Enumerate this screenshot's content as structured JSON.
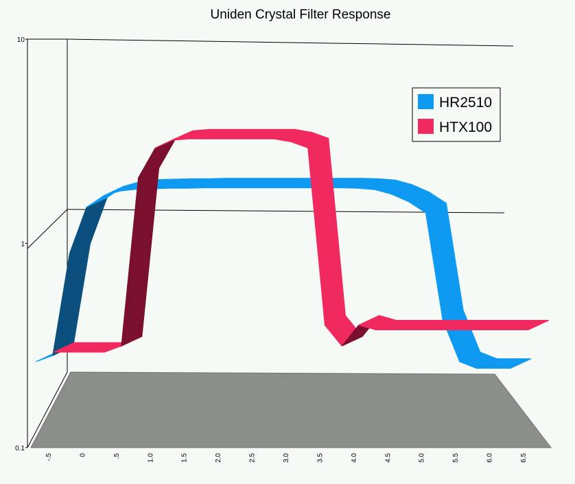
{
  "chart_data": {
    "type": "line",
    "title": "Uniden Crystal Filter Response",
    "x_tick_labels": [
      "-.5",
      "0",
      ".5",
      "1.0",
      "1.5",
      "2.0",
      "2.5",
      "3.0",
      "3.5",
      "4.0",
      "4.5",
      "5.0",
      "5.5",
      "6.0",
      "6.5"
    ],
    "y_tick_labels": [
      "0.1",
      "1",
      "10"
    ],
    "y_scale": "log",
    "ylim": [
      0.1,
      10
    ],
    "xlim": [
      -0.5,
      6.5
    ],
    "grid": true,
    "legend_position": "top-right",
    "x": [
      -0.5,
      -0.25,
      0.0,
      0.25,
      0.5,
      0.75,
      1.0,
      1.25,
      1.5,
      1.75,
      2.0,
      2.25,
      2.5,
      2.75,
      3.0,
      3.25,
      3.5,
      3.75,
      4.0,
      4.25,
      4.5,
      4.75,
      5.0,
      5.25,
      5.5,
      5.75,
      6.0,
      6.25,
      6.5
    ],
    "series": [
      {
        "name": "HR2510",
        "color": "#0f9af2",
        "shade": "#0b4f7e",
        "values": [
          0.28,
          0.3,
          0.95,
          1.6,
          1.82,
          1.92,
          1.96,
          1.97,
          1.98,
          1.98,
          1.99,
          1.99,
          1.99,
          1.99,
          1.99,
          1.99,
          1.99,
          1.99,
          1.99,
          1.98,
          1.95,
          1.85,
          1.7,
          1.5,
          0.45,
          0.28,
          0.26,
          0.26,
          0.26
        ]
      },
      {
        "name": "HTX100",
        "color": "#f02a5e",
        "shade": "#7a0f2e",
        "values": [
          0.28,
          0.28,
          0.28,
          0.28,
          0.3,
          2.0,
          2.8,
          3.05,
          3.1,
          3.1,
          3.1,
          3.1,
          3.1,
          3.1,
          3.0,
          2.8,
          0.38,
          0.3,
          0.38,
          0.36,
          0.36,
          0.36,
          0.36,
          0.36,
          0.36,
          0.36,
          0.36,
          0.36,
          0.36
        ]
      }
    ]
  }
}
